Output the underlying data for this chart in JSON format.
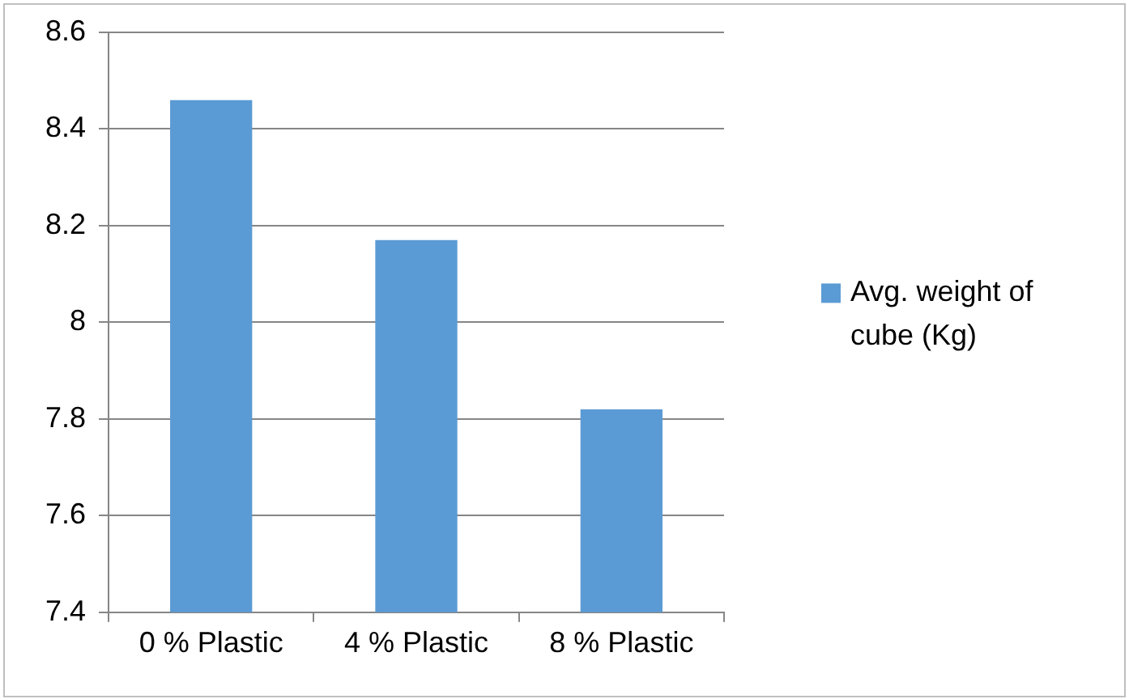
{
  "chart_data": {
    "type": "bar",
    "categories": [
      "0 % Plastic",
      "4 % Plastic",
      "8 % Plastic"
    ],
    "series": [
      {
        "name": "Avg. weight of cube (Kg)",
        "color": "#5b9bd5",
        "values": [
          8.46,
          8.17,
          7.82
        ]
      }
    ],
    "ylim": [
      7.4,
      8.6
    ],
    "yticks": [
      7.4,
      7.6,
      7.8,
      8,
      8.2,
      8.4,
      8.6
    ],
    "grid": "y",
    "legend": "right"
  }
}
